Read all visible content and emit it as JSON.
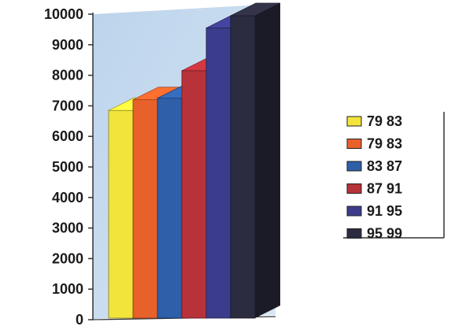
{
  "chart_data": {
    "type": "bar",
    "categories": [
      "79 83",
      "79 83",
      "83 87",
      "87 91",
      "91 95",
      "95 99"
    ],
    "values": [
      6850,
      7200,
      7250,
      8150,
      9550,
      9950
    ],
    "ylim": [
      0,
      10000
    ],
    "yticks": [
      0,
      1000,
      2000,
      3000,
      4000,
      5000,
      6000,
      7000,
      8000,
      9000,
      10000
    ],
    "legend_position": "right",
    "colors": [
      "#f2e43a",
      "#e8612a",
      "#2e5fa8",
      "#b8323a",
      "#3c3c8c",
      "#2c2c40"
    ],
    "background_color": "#c3d9ee"
  }
}
